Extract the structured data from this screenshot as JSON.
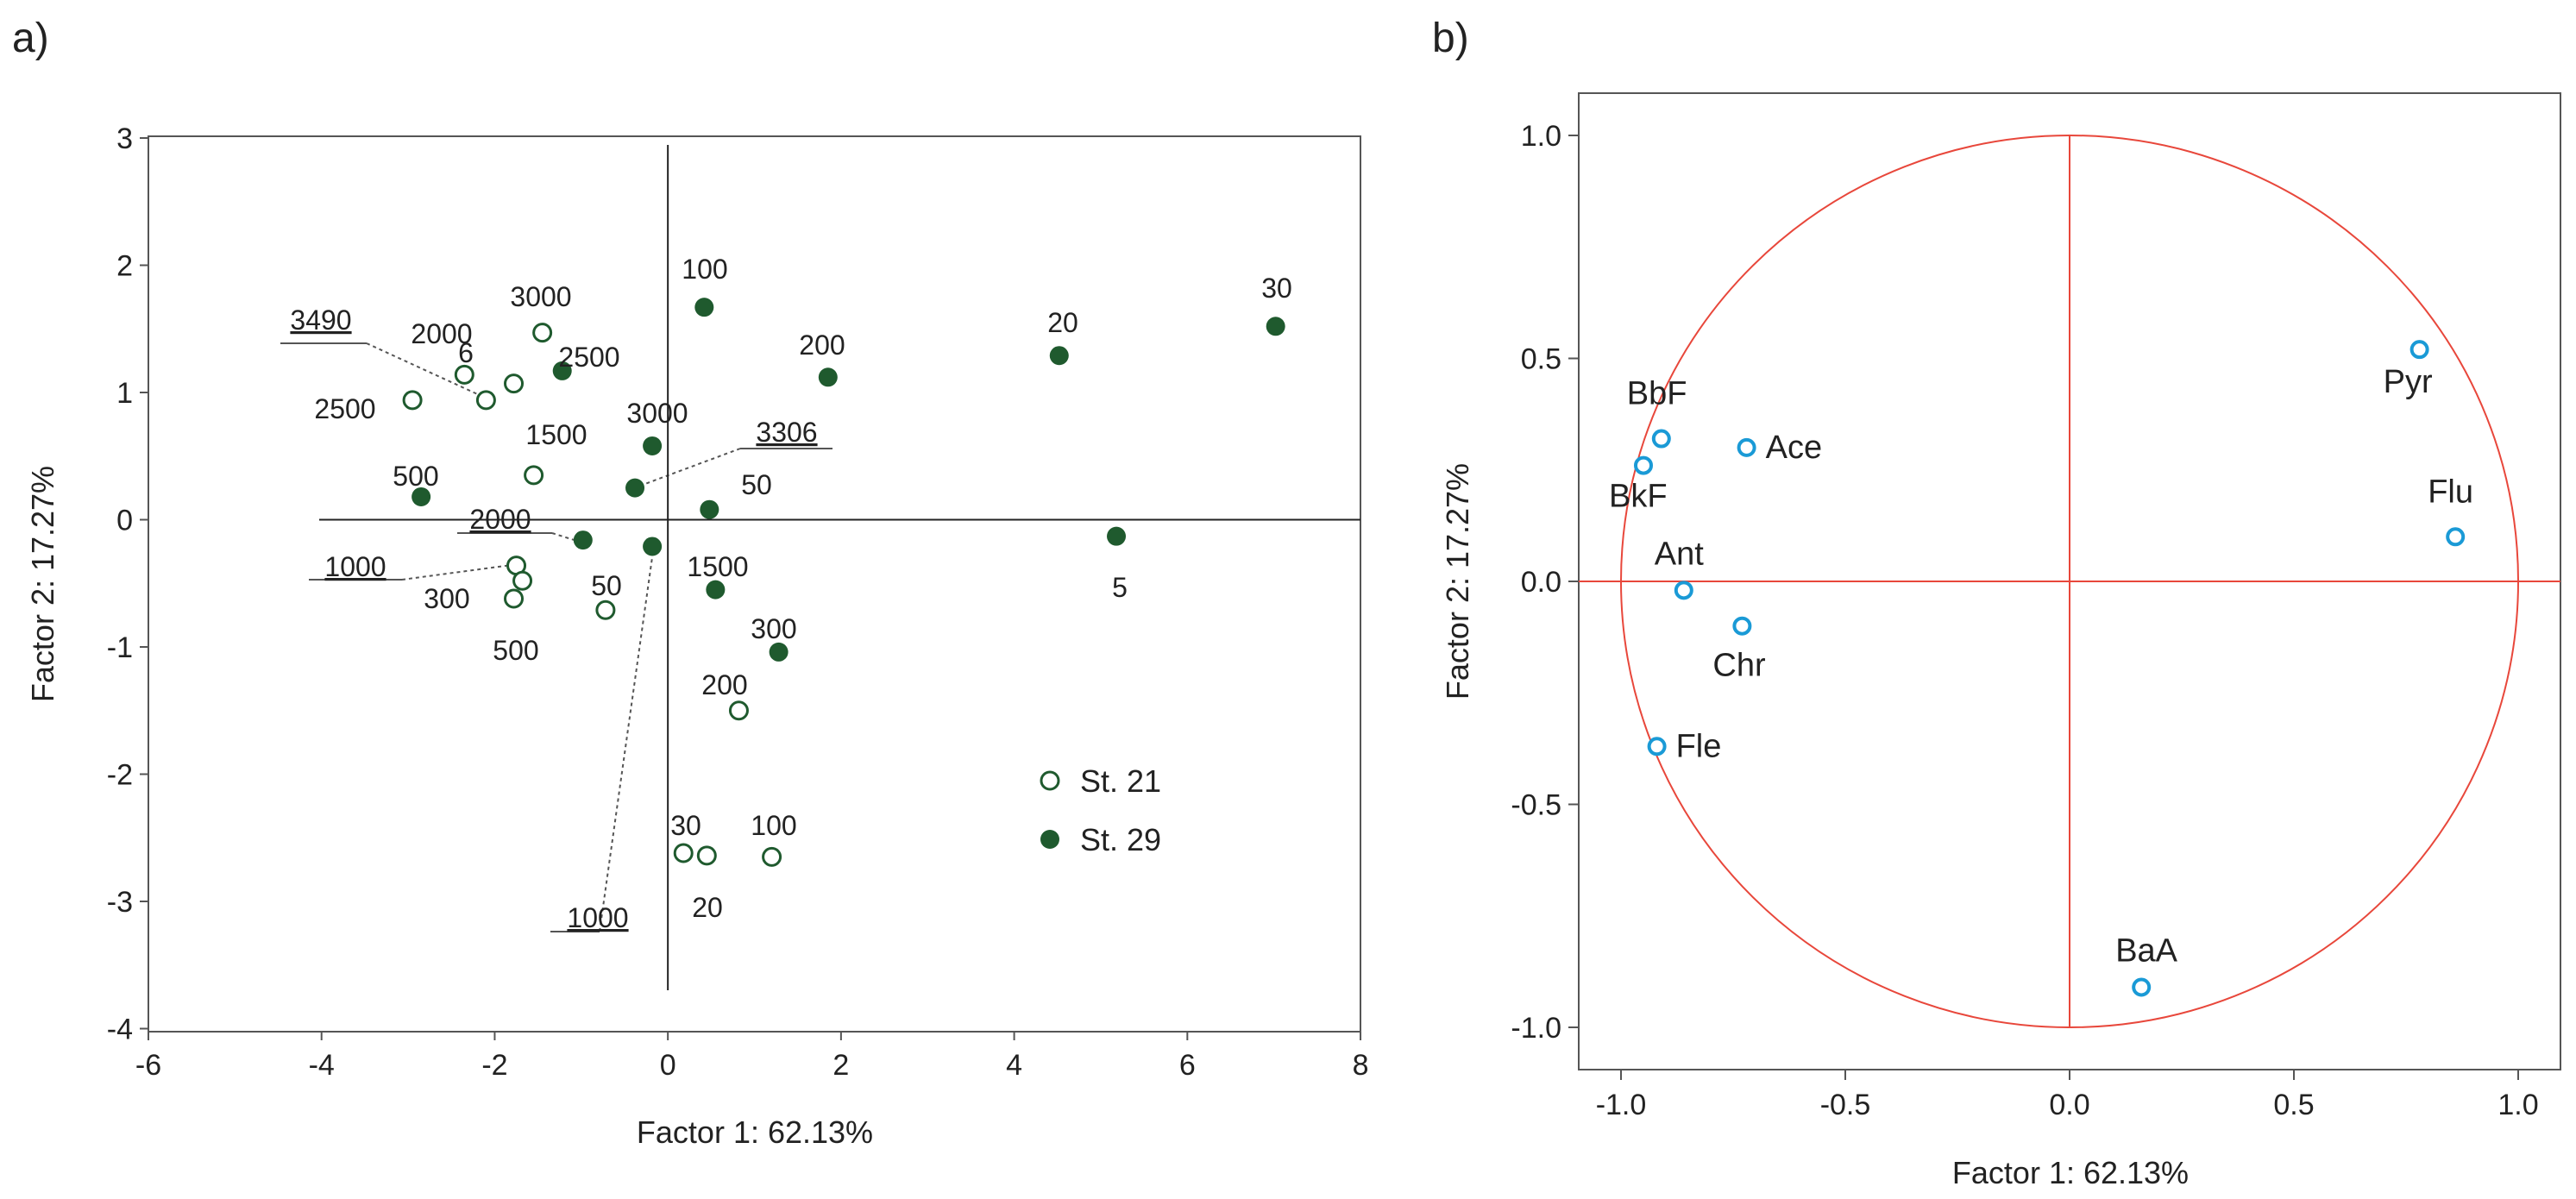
{
  "chart_data": [
    {
      "panel_label": "a)",
      "type": "scatter",
      "xlabel": "Factor 1: 62.13%",
      "ylabel": "Factor 2: 17.27%",
      "xlim": [
        -6,
        8
      ],
      "ylim": [
        -4,
        3
      ],
      "xticks": [
        "-6",
        "-4",
        "-2",
        "0",
        "2",
        "4",
        "6",
        "8"
      ],
      "yticks": [
        "-4",
        "-3",
        "-2",
        "-1",
        "0",
        "1",
        "2",
        "3"
      ],
      "legend_position": "lower-right",
      "series": [
        {
          "name": "St. 21",
          "marker": "open-circle",
          "color": "#1f5a2e",
          "points": [
            {
              "x": -1.45,
              "y": 1.47,
              "label": "3000"
            },
            {
              "x": -2.35,
              "y": 1.14,
              "label": "2000"
            },
            {
              "x": -2.1,
              "y": 0.94,
              "label": "3490"
            },
            {
              "x": -1.78,
              "y": 1.07,
              "label": "6"
            },
            {
              "x": -2.95,
              "y": 0.94,
              "label": "2500"
            },
            {
              "x": -1.55,
              "y": 0.35,
              "label": "1500"
            },
            {
              "x": -1.75,
              "y": -0.36,
              "label": "1000"
            },
            {
              "x": -1.68,
              "y": -0.48,
              "label": "300"
            },
            {
              "x": -1.78,
              "y": -0.62,
              "label": "500"
            },
            {
              "x": -0.72,
              "y": -0.71,
              "label": "50"
            },
            {
              "x": 0.82,
              "y": -1.5,
              "label": "200"
            },
            {
              "x": 0.18,
              "y": -2.62,
              "label": "30"
            },
            {
              "x": 0.45,
              "y": -2.64,
              "label": "20"
            },
            {
              "x": 1.2,
              "y": -2.65,
              "label": "100"
            }
          ]
        },
        {
          "name": "St. 29",
          "marker": "filled-circle",
          "color": "#1f5a2e",
          "points": [
            {
              "x": 0.42,
              "y": 1.67,
              "label": "100"
            },
            {
              "x": -1.22,
              "y": 1.17,
              "label": "2500"
            },
            {
              "x": 1.85,
              "y": 1.12,
              "label": "200"
            },
            {
              "x": 4.52,
              "y": 1.29,
              "label": "20"
            },
            {
              "x": 7.02,
              "y": 1.52,
              "label": "30"
            },
            {
              "x": -0.18,
              "y": 0.58,
              "label": "3000"
            },
            {
              "x": -0.38,
              "y": 0.25,
              "label": "3306"
            },
            {
              "x": -2.85,
              "y": 0.18,
              "label": "500"
            },
            {
              "x": 0.48,
              "y": 0.08,
              "label": "50"
            },
            {
              "x": -0.98,
              "y": -0.16,
              "label": "2000"
            },
            {
              "x": -0.18,
              "y": -0.21,
              "label": "1000"
            },
            {
              "x": 0.55,
              "y": -0.55,
              "label": "1500"
            },
            {
              "x": 1.28,
              "y": -1.04,
              "label": "300"
            },
            {
              "x": 5.18,
              "y": -0.13,
              "label": "5"
            }
          ]
        }
      ]
    },
    {
      "panel_label": "b)",
      "type": "scatter",
      "subtype": "correlation-circle",
      "xlabel": "Factor 1: 62.13%",
      "ylabel": "Factor 2: 17.27%",
      "xlim": [
        -1.1,
        1.1
      ],
      "ylim": [
        -1.1,
        1.1
      ],
      "xticks": [
        "-1.0",
        "-0.5",
        "0.0",
        "0.5",
        "1.0"
      ],
      "yticks": [
        "-1.0",
        "-0.5",
        "0.0",
        "0.5",
        "1.0"
      ],
      "circle_color": "#e8473b",
      "point_color": "#1a9ad6",
      "points": [
        {
          "label": "BbF",
          "x": -0.91,
          "y": 0.32
        },
        {
          "label": "BkF",
          "x": -0.95,
          "y": 0.26
        },
        {
          "label": "Ace",
          "x": -0.72,
          "y": 0.3
        },
        {
          "label": "Ant",
          "x": -0.86,
          "y": -0.02
        },
        {
          "label": "Chr",
          "x": -0.73,
          "y": -0.1
        },
        {
          "label": "Fle",
          "x": -0.92,
          "y": -0.37
        },
        {
          "label": "Pyr",
          "x": 0.78,
          "y": 0.52
        },
        {
          "label": "Flu",
          "x": 0.86,
          "y": 0.1
        },
        {
          "label": "BaA",
          "x": 0.16,
          "y": -0.91
        }
      ]
    }
  ]
}
